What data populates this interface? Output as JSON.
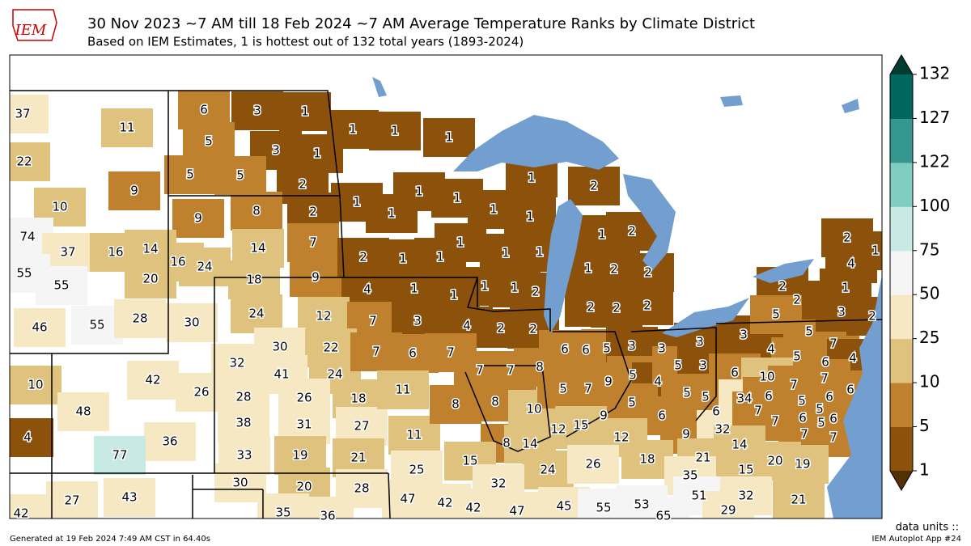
{
  "logo": "IEM",
  "title": "30 Nov 2023 ~7 AM till 18 Feb 2024 ~7 AM Average Temperature Ranks by Climate District",
  "subtitle": "Based on IEM Estimates, 1 is hottest out of 132 total years (1893-2024)",
  "colorbar": {
    "ticks": [
      1,
      5,
      10,
      25,
      50,
      75,
      100,
      122,
      127,
      132
    ],
    "colors": [
      "#8c510a",
      "#bf812d",
      "#dfc27d",
      "#f6e8c3",
      "#f5f5f5",
      "#c7eae5",
      "#80cdc1",
      "#35978f",
      "#01665e"
    ],
    "under_color": "#543005",
    "over_color": "#003c30"
  },
  "districts": [
    37,
    11,
    22,
    9,
    10,
    6,
    3,
    1,
    5,
    3,
    1,
    5,
    5,
    2,
    1,
    1,
    1,
    9,
    8,
    2,
    7,
    14,
    9,
    16,
    24,
    18,
    74,
    37,
    16,
    14,
    55,
    55,
    20,
    46,
    55,
    28,
    30,
    1,
    1,
    1,
    1,
    1,
    1,
    1,
    2,
    2,
    1,
    1,
    1,
    1,
    1,
    1,
    1,
    2,
    4,
    1,
    1,
    1,
    2,
    1,
    2,
    2,
    2,
    2,
    2,
    24,
    12,
    7,
    3,
    4,
    2,
    2,
    32,
    30,
    22,
    41,
    24,
    7,
    6,
    7,
    10,
    42,
    26,
    48,
    4,
    36,
    77,
    28,
    26,
    18,
    38,
    31,
    27,
    33,
    19,
    21,
    11,
    11,
    8,
    7,
    7,
    8,
    8,
    8,
    14,
    10,
    25,
    15,
    6,
    6,
    5,
    3,
    3,
    3,
    5,
    7,
    9,
    5,
    4,
    5,
    3,
    5,
    6,
    5,
    5,
    9,
    12,
    15,
    12,
    9,
    6,
    32,
    21,
    3,
    4,
    5,
    7,
    5,
    6,
    4,
    6,
    10,
    7,
    7,
    6,
    34,
    6,
    7,
    5,
    6,
    6,
    5,
    5,
    6,
    7,
    7,
    7,
    14,
    15,
    20,
    19,
    2,
    1,
    4,
    2,
    2,
    1,
    5,
    3,
    2,
    24,
    26,
    18,
    35,
    32,
    47,
    42,
    42,
    47,
    45,
    55,
    53,
    65,
    51,
    32,
    29,
    21,
    27,
    43,
    30,
    20,
    28,
    35,
    36,
    42
  ],
  "units_label": "data units ::",
  "footer_left": "Generated at 19 Feb 2024 7:49 AM CST in 64.40s",
  "footer_right": "IEM Autoplot App #24"
}
